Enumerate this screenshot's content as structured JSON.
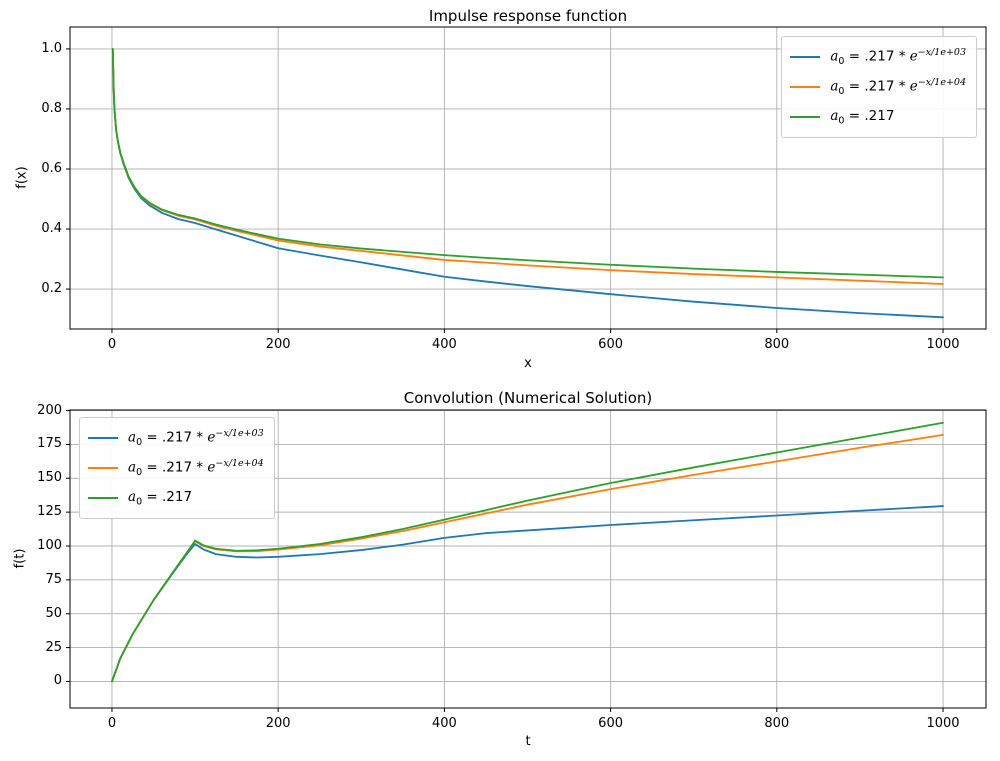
{
  "figure": {
    "background": "#ffffff",
    "grid_color": "#b0b0b0",
    "spine_color": "#000000",
    "text_color": "#000000",
    "series_colors": {
      "blue": "#1f77b4",
      "orange": "#ff7f0e",
      "green": "#2ca02c"
    }
  },
  "chart_data": [
    {
      "type": "line",
      "title": "Impulse response function",
      "xlabel": "x",
      "ylabel": "f(x)",
      "xlim": [
        -50.5,
        1051.7
      ],
      "ylim": [
        0.067,
        1.073
      ],
      "xticks": [
        0,
        200,
        400,
        600,
        800,
        1000
      ],
      "xtick_labels": [
        "0",
        "200",
        "400",
        "600",
        "800",
        "1000"
      ],
      "yticks": [
        0.2,
        0.4,
        0.6,
        0.8,
        1.0
      ],
      "ytick_labels": [
        "0.2",
        "0.4",
        "0.6",
        "0.8",
        "1.0"
      ],
      "grid": true,
      "legend_position": "top-right",
      "series": [
        {
          "key": "a0-decay-1e03",
          "label": {
            "var": "a",
            "sub": "0",
            "mid": " = .217 * ",
            "base": "e",
            "sup": "−x/1e+03"
          },
          "color": "#1f77b4",
          "x": [
            1,
            2,
            3,
            5,
            7,
            10,
            14,
            20,
            27,
            35,
            45,
            60,
            80,
            100,
            125,
            150,
            200,
            250,
            300,
            350,
            400,
            450,
            500,
            600,
            700,
            800,
            900,
            1000
          ],
          "y": [
            1.0,
            0.869,
            0.799,
            0.729,
            0.693,
            0.652,
            0.616,
            0.57,
            0.534,
            0.503,
            0.479,
            0.454,
            0.433,
            0.42,
            0.399,
            0.378,
            0.336,
            0.312,
            0.289,
            0.265,
            0.241,
            0.225,
            0.21,
            0.183,
            0.158,
            0.137,
            0.12,
            0.106
          ]
        },
        {
          "key": "a0-decay-1e04",
          "label": {
            "var": "a",
            "sub": "0",
            "mid": " = .217 * ",
            "base": "e",
            "sup": "−x/1e+04"
          },
          "color": "#ff7f0e",
          "x": [
            1,
            2,
            3,
            5,
            7,
            10,
            14,
            20,
            27,
            35,
            45,
            60,
            80,
            100,
            125,
            150,
            200,
            250,
            300,
            350,
            400,
            450,
            500,
            600,
            700,
            800,
            900,
            1000
          ],
          "y": [
            1.0,
            0.87,
            0.8,
            0.73,
            0.694,
            0.654,
            0.619,
            0.574,
            0.539,
            0.509,
            0.486,
            0.463,
            0.444,
            0.432,
            0.411,
            0.394,
            0.362,
            0.342,
            0.327,
            0.312,
            0.297,
            0.288,
            0.279,
            0.263,
            0.25,
            0.239,
            0.228,
            0.217
          ]
        },
        {
          "key": "a0-constant",
          "label": {
            "var": "a",
            "sub": "0",
            "mid": " = .217",
            "base": "",
            "sup": ""
          },
          "color": "#2ca02c",
          "x": [
            1,
            2,
            3,
            5,
            7,
            10,
            14,
            20,
            27,
            35,
            45,
            60,
            80,
            100,
            125,
            150,
            200,
            250,
            300,
            350,
            400,
            450,
            500,
            600,
            700,
            800,
            900,
            1000
          ],
          "y": [
            1.0,
            0.87,
            0.8,
            0.73,
            0.695,
            0.655,
            0.62,
            0.575,
            0.54,
            0.51,
            0.488,
            0.465,
            0.447,
            0.435,
            0.415,
            0.398,
            0.368,
            0.349,
            0.335,
            0.324,
            0.313,
            0.304,
            0.296,
            0.281,
            0.268,
            0.257,
            0.248,
            0.239
          ]
        }
      ]
    },
    {
      "type": "line",
      "title": "Convolution (Numerical Solution)",
      "xlabel": "t",
      "ylabel": "f(t)",
      "xlim": [
        -50.5,
        1051.7
      ],
      "ylim": [
        -19.6,
        200.4
      ],
      "xticks": [
        0,
        200,
        400,
        600,
        800,
        1000
      ],
      "xtick_labels": [
        "0",
        "200",
        "400",
        "600",
        "800",
        "1000"
      ],
      "yticks": [
        0,
        25,
        50,
        75,
        100,
        125,
        150,
        175,
        200
      ],
      "ytick_labels": [
        "0",
        "25",
        "50",
        "75",
        "100",
        "125",
        "150",
        "175",
        "200"
      ],
      "grid": true,
      "legend_position": "top-left",
      "series": [
        {
          "key": "a0-decay-1e03",
          "label": {
            "var": "a",
            "sub": "0",
            "mid": " = .217 * ",
            "base": "e",
            "sup": "−x/1e+03"
          },
          "color": "#1f77b4",
          "x": [
            0,
            10,
            25,
            50,
            75,
            90,
            100,
            110,
            125,
            150,
            175,
            200,
            250,
            300,
            350,
            400,
            450,
            500,
            600,
            700,
            800,
            900,
            1000
          ],
          "y": [
            0,
            17,
            35,
            60,
            81.5,
            94,
            101.5,
            97.5,
            94,
            92,
            91.5,
            92,
            94,
            97,
            101,
            106,
            109.5,
            111.5,
            115.5,
            119,
            122.5,
            126,
            129.5
          ]
        },
        {
          "key": "a0-decay-1e04",
          "label": {
            "var": "a",
            "sub": "0",
            "mid": " = .217 * ",
            "base": "e",
            "sup": "−x/1e+04"
          },
          "color": "#ff7f0e",
          "x": [
            0,
            10,
            25,
            50,
            75,
            90,
            100,
            110,
            125,
            150,
            175,
            200,
            250,
            300,
            350,
            400,
            450,
            500,
            600,
            700,
            800,
            900,
            1000
          ],
          "y": [
            0,
            17,
            35,
            60,
            82,
            95,
            103.5,
            100,
            97.5,
            96,
            96.2,
            97.3,
            100.5,
            105.5,
            111,
            117.5,
            124,
            130.5,
            142,
            152.5,
            162.5,
            172.5,
            182
          ]
        },
        {
          "key": "a0-constant",
          "label": {
            "var": "a",
            "sub": "0",
            "mid": " = .217",
            "base": "",
            "sup": ""
          },
          "color": "#2ca02c",
          "x": [
            0,
            10,
            25,
            50,
            75,
            90,
            100,
            110,
            125,
            150,
            175,
            200,
            250,
            300,
            350,
            400,
            450,
            500,
            600,
            700,
            800,
            900,
            1000
          ],
          "y": [
            0,
            17,
            35,
            60,
            82,
            95,
            104,
            100.5,
            98,
            96.5,
            96.8,
            98,
            101.5,
            106.5,
            112.5,
            119.5,
            126.5,
            133.5,
            146.5,
            158,
            169,
            180,
            191
          ]
        }
      ]
    }
  ]
}
